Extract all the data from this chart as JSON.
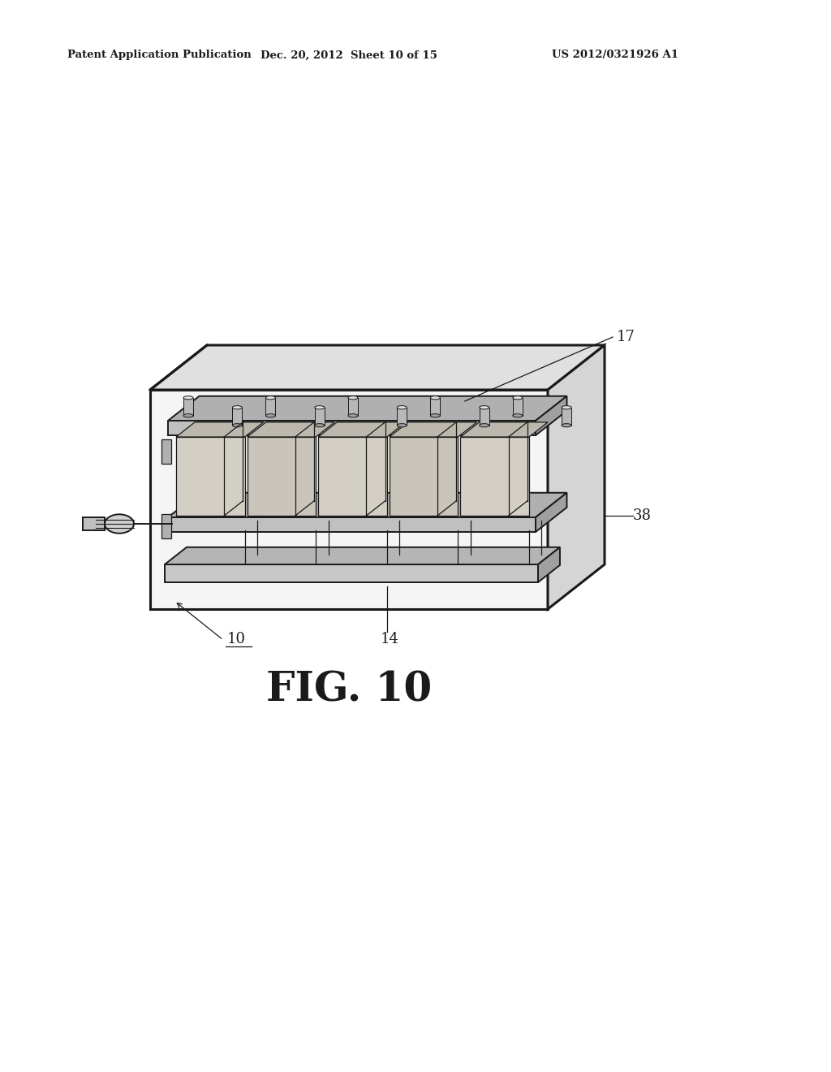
{
  "bg_color": "#ffffff",
  "line_color": "#1a1a1a",
  "gray_light": "#e8e8e8",
  "gray_mid": "#c8c8c8",
  "gray_dark": "#a0a0a0",
  "gray_cell": "#d0c8b8",
  "header_left": "Patent Application Publication",
  "header_mid": "Dec. 20, 2012  Sheet 10 of 15",
  "header_right": "US 2012/0321926 A1",
  "fig_label": "FIG. 10",
  "label_17": "17",
  "label_38": "38",
  "label_10": "10",
  "label_14": "14"
}
